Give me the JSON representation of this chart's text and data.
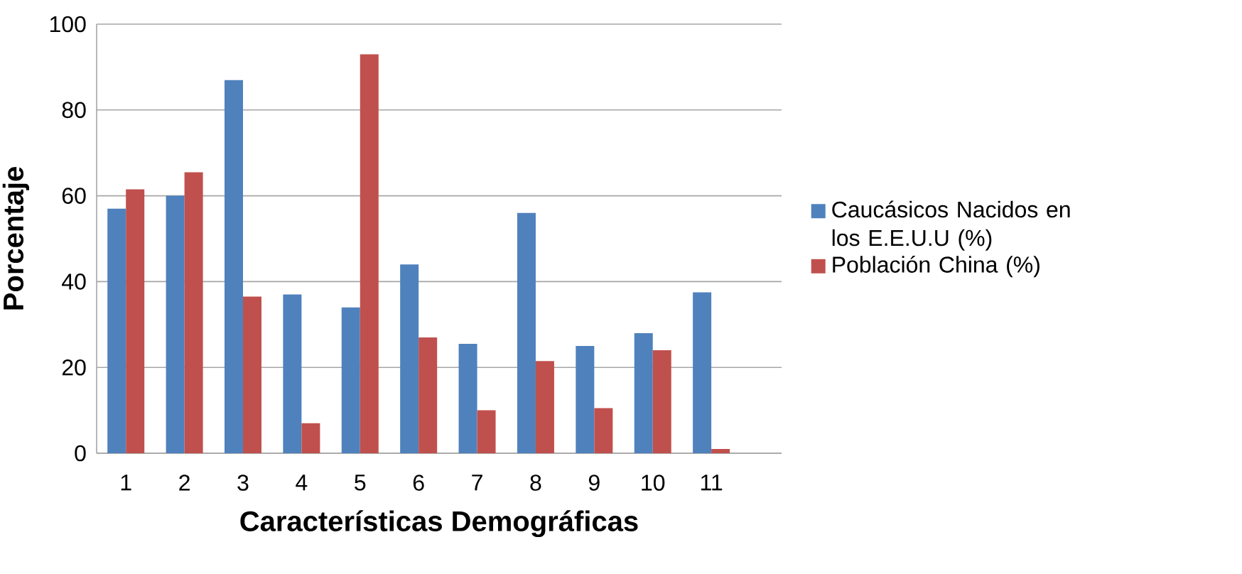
{
  "chart_data": {
    "type": "bar",
    "xlabel": "Características Demográficas",
    "ylabel": "Porcentaje",
    "categories": [
      "1",
      "2",
      "3",
      "4",
      "5",
      "6",
      "7",
      "8",
      "9",
      "10",
      "11",
      null
    ],
    "series": [
      {
        "name": "Caucásicos Nacidos en los E.E.U.U (%)",
        "color": "#4f81bd",
        "values": [
          57,
          60,
          87,
          37,
          34,
          44,
          25.5,
          56,
          25,
          28,
          37.5,
          null
        ]
      },
      {
        "name": "Población China (%)",
        "color": "#c0504d",
        "values": [
          61.5,
          65.5,
          36.5,
          7,
          93,
          27,
          10,
          21.5,
          10.5,
          24,
          1,
          null
        ]
      }
    ],
    "ylim": [
      0,
      100
    ],
    "yticks": [
      0,
      20,
      40,
      60,
      80,
      100
    ],
    "grid": "y",
    "legend": "right"
  }
}
